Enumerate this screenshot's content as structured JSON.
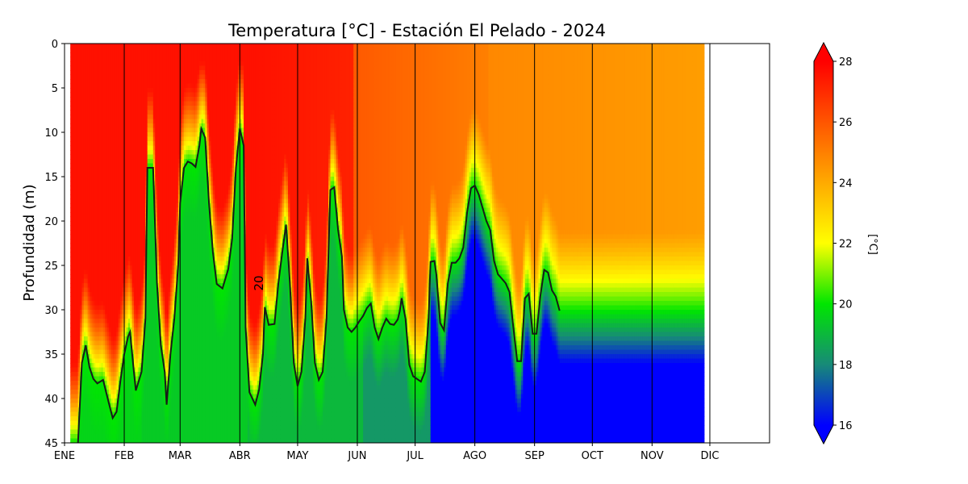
{
  "chart_data": {
    "type": "heatmap",
    "title": "Temperatura [°C] - Estación El Pelado - 2024",
    "xlabel": "",
    "ylabel": "Profundidad (m)",
    "x_range_days": [
      0,
      366
    ],
    "ylim": [
      45,
      0
    ],
    "y_ticks": [
      0,
      5,
      10,
      15,
      20,
      25,
      30,
      35,
      40,
      45
    ],
    "month_ticks": [
      {
        "label": "ENE",
        "day": 0
      },
      {
        "label": "FEB",
        "day": 31
      },
      {
        "label": "MAR",
        "day": 60
      },
      {
        "label": "ABR",
        "day": 91
      },
      {
        "label": "MAY",
        "day": 121
      },
      {
        "label": "JUN",
        "day": 152
      },
      {
        "label": "JUL",
        "day": 182
      },
      {
        "label": "AGO",
        "day": 213
      },
      {
        "label": "SEP",
        "day": 244
      },
      {
        "label": "OCT",
        "day": 274
      },
      {
        "label": "NOV",
        "day": 305
      },
      {
        "label": "DIC",
        "day": 335
      }
    ],
    "data_day_range": [
      3,
      332
    ],
    "colorbar": {
      "label": "[°C]",
      "min": 16,
      "max": 28,
      "ticks": [
        16,
        18,
        20,
        22,
        24,
        26,
        28
      ],
      "extend": "both",
      "stops": [
        {
          "t": 16,
          "color": "#0000ff"
        },
        {
          "t": 18,
          "color": "#178a78"
        },
        {
          "t": 20,
          "color": "#00e600"
        },
        {
          "t": 22,
          "color": "#ffff00"
        },
        {
          "t": 24,
          "color": "#ffaa00"
        },
        {
          "t": 26,
          "color": "#ff5500"
        },
        {
          "t": 28,
          "color": "#ff0000"
        }
      ]
    },
    "contour": {
      "level": 20,
      "label": "20",
      "label_position": {
        "day": 103,
        "depth": 27
      },
      "depth_by_day": [
        [
          7,
          45
        ],
        [
          9,
          36
        ],
        [
          11,
          34
        ],
        [
          13,
          36.5
        ],
        [
          15,
          37.8
        ],
        [
          17,
          38.3
        ],
        [
          20,
          37.9
        ],
        [
          23,
          40.5
        ],
        [
          25,
          42.2
        ],
        [
          27,
          41.5
        ],
        [
          29,
          38
        ],
        [
          31,
          35
        ],
        [
          33,
          33
        ],
        [
          34,
          32.5
        ],
        [
          36,
          37
        ],
        [
          37,
          39.1
        ],
        [
          40,
          37
        ],
        [
          42,
          31
        ],
        [
          43,
          14
        ],
        [
          46,
          14
        ],
        [
          48,
          27
        ],
        [
          50,
          34
        ],
        [
          52,
          37
        ],
        [
          53,
          40.7
        ],
        [
          55,
          35
        ],
        [
          57,
          31
        ],
        [
          59,
          25
        ],
        [
          60,
          18
        ],
        [
          62,
          14
        ],
        [
          64,
          13.3
        ],
        [
          66,
          13.5
        ],
        [
          68,
          13.9
        ],
        [
          70,
          11.5
        ],
        [
          71,
          9.6
        ],
        [
          73,
          10.6
        ],
        [
          75,
          18
        ],
        [
          77,
          23.5
        ],
        [
          79,
          27.1
        ],
        [
          82,
          27.6
        ],
        [
          85,
          25.4
        ],
        [
          87,
          22
        ],
        [
          89,
          14
        ],
        [
          91,
          9.6
        ],
        [
          93,
          11.5
        ],
        [
          94,
          32
        ],
        [
          96,
          39.3
        ],
        [
          99,
          40.7
        ],
        [
          101,
          39
        ],
        [
          103,
          35
        ],
        [
          104,
          29.7
        ],
        [
          106,
          31.7
        ],
        [
          109,
          31.6
        ],
        [
          111,
          27
        ],
        [
          113,
          23.6
        ],
        [
          115,
          20.4
        ],
        [
          117,
          27
        ],
        [
          119,
          36
        ],
        [
          121,
          38.6
        ],
        [
          123,
          37
        ],
        [
          125,
          31
        ],
        [
          126,
          24.2
        ],
        [
          128,
          29
        ],
        [
          130,
          36
        ],
        [
          132,
          37.9
        ],
        [
          134,
          37
        ],
        [
          136,
          31
        ],
        [
          138,
          16.5
        ],
        [
          140,
          16.2
        ],
        [
          142,
          21
        ],
        [
          144,
          24
        ],
        [
          145,
          30
        ],
        [
          147,
          32
        ],
        [
          149,
          32.5
        ],
        [
          151,
          32
        ],
        [
          153,
          31.3
        ],
        [
          155,
          30.7
        ],
        [
          157,
          29.8
        ],
        [
          159,
          29.3
        ],
        [
          161,
          32
        ],
        [
          163,
          33.3
        ],
        [
          165,
          32
        ],
        [
          167,
          31
        ],
        [
          169,
          31.6
        ],
        [
          171,
          31.7
        ],
        [
          173,
          31.1
        ],
        [
          174,
          30.2
        ],
        [
          175,
          28.7
        ],
        [
          177,
          31
        ],
        [
          179,
          36.2
        ],
        [
          181,
          37.5
        ],
        [
          183,
          37.8
        ],
        [
          185,
          38.1
        ],
        [
          187,
          37
        ],
        [
          189,
          31
        ],
        [
          190,
          24.6
        ],
        [
          192,
          24.5
        ],
        [
          193,
          26
        ],
        [
          195,
          31.5
        ],
        [
          197,
          32.3
        ],
        [
          199,
          27
        ],
        [
          201,
          24.7
        ],
        [
          203,
          24.7
        ],
        [
          205,
          24.2
        ],
        [
          207,
          23
        ],
        [
          209,
          19
        ],
        [
          211,
          16.3
        ],
        [
          213,
          16
        ],
        [
          215,
          17
        ],
        [
          217,
          18.5
        ],
        [
          219,
          20
        ],
        [
          221,
          21
        ],
        [
          223,
          24.5
        ],
        [
          225,
          26
        ],
        [
          227,
          26.5
        ],
        [
          229,
          27
        ],
        [
          231,
          28
        ],
        [
          233,
          32
        ],
        [
          235,
          35.8
        ],
        [
          237,
          35.8
        ],
        [
          239,
          28.7
        ],
        [
          241,
          28.2
        ],
        [
          243,
          32.7
        ],
        [
          245,
          32.7
        ],
        [
          247,
          28.5
        ],
        [
          249,
          25.5
        ],
        [
          251,
          25.8
        ],
        [
          253,
          27.8
        ],
        [
          255,
          28.5
        ],
        [
          257,
          30.1
        ]
      ]
    }
  }
}
